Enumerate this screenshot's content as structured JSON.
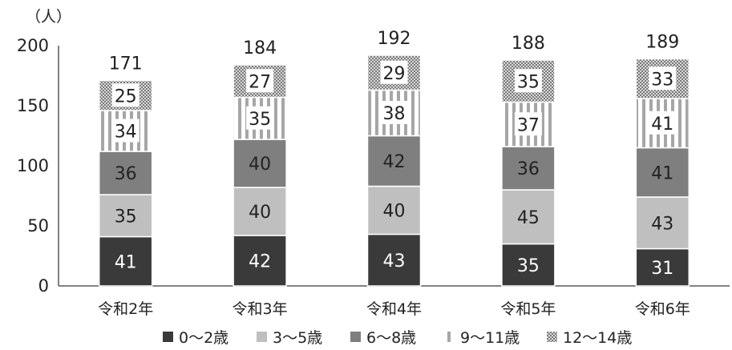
{
  "chart_data": {
    "type": "bar",
    "stacked": true,
    "unit_label": "（人）",
    "categories": [
      "令和2年",
      "令和3年",
      "令和4年",
      "令和5年",
      "令和6年"
    ],
    "series": [
      {
        "name": "0～2歳",
        "values": [
          41,
          42,
          43,
          35,
          31
        ],
        "color": "#3a3a3a",
        "pattern": "solid",
        "label_color": "#ffffff"
      },
      {
        "name": "3～5歳",
        "values": [
          35,
          40,
          40,
          45,
          43
        ],
        "color": "#bfbfbf",
        "pattern": "solid",
        "label_color": "#222222"
      },
      {
        "name": "6～8歳",
        "values": [
          36,
          40,
          42,
          36,
          41
        ],
        "color": "#7f7f7f",
        "pattern": "solid",
        "label_color": "#222222"
      },
      {
        "name": "9～11歳",
        "values": [
          34,
          35,
          38,
          37,
          41
        ],
        "color": "#a6a6a6",
        "pattern": "vertical-stripes",
        "label_color": "#222222"
      },
      {
        "name": "12～14歳",
        "values": [
          25,
          27,
          29,
          35,
          33
        ],
        "color": "#8c8c8c",
        "pattern": "checker",
        "label_color": "#222222"
      }
    ],
    "totals": [
      171,
      184,
      192,
      188,
      189
    ],
    "yticks": [
      0,
      50,
      100,
      150,
      200
    ],
    "ylim": [
      0,
      200
    ],
    "grid": false,
    "legend": "bottom"
  }
}
